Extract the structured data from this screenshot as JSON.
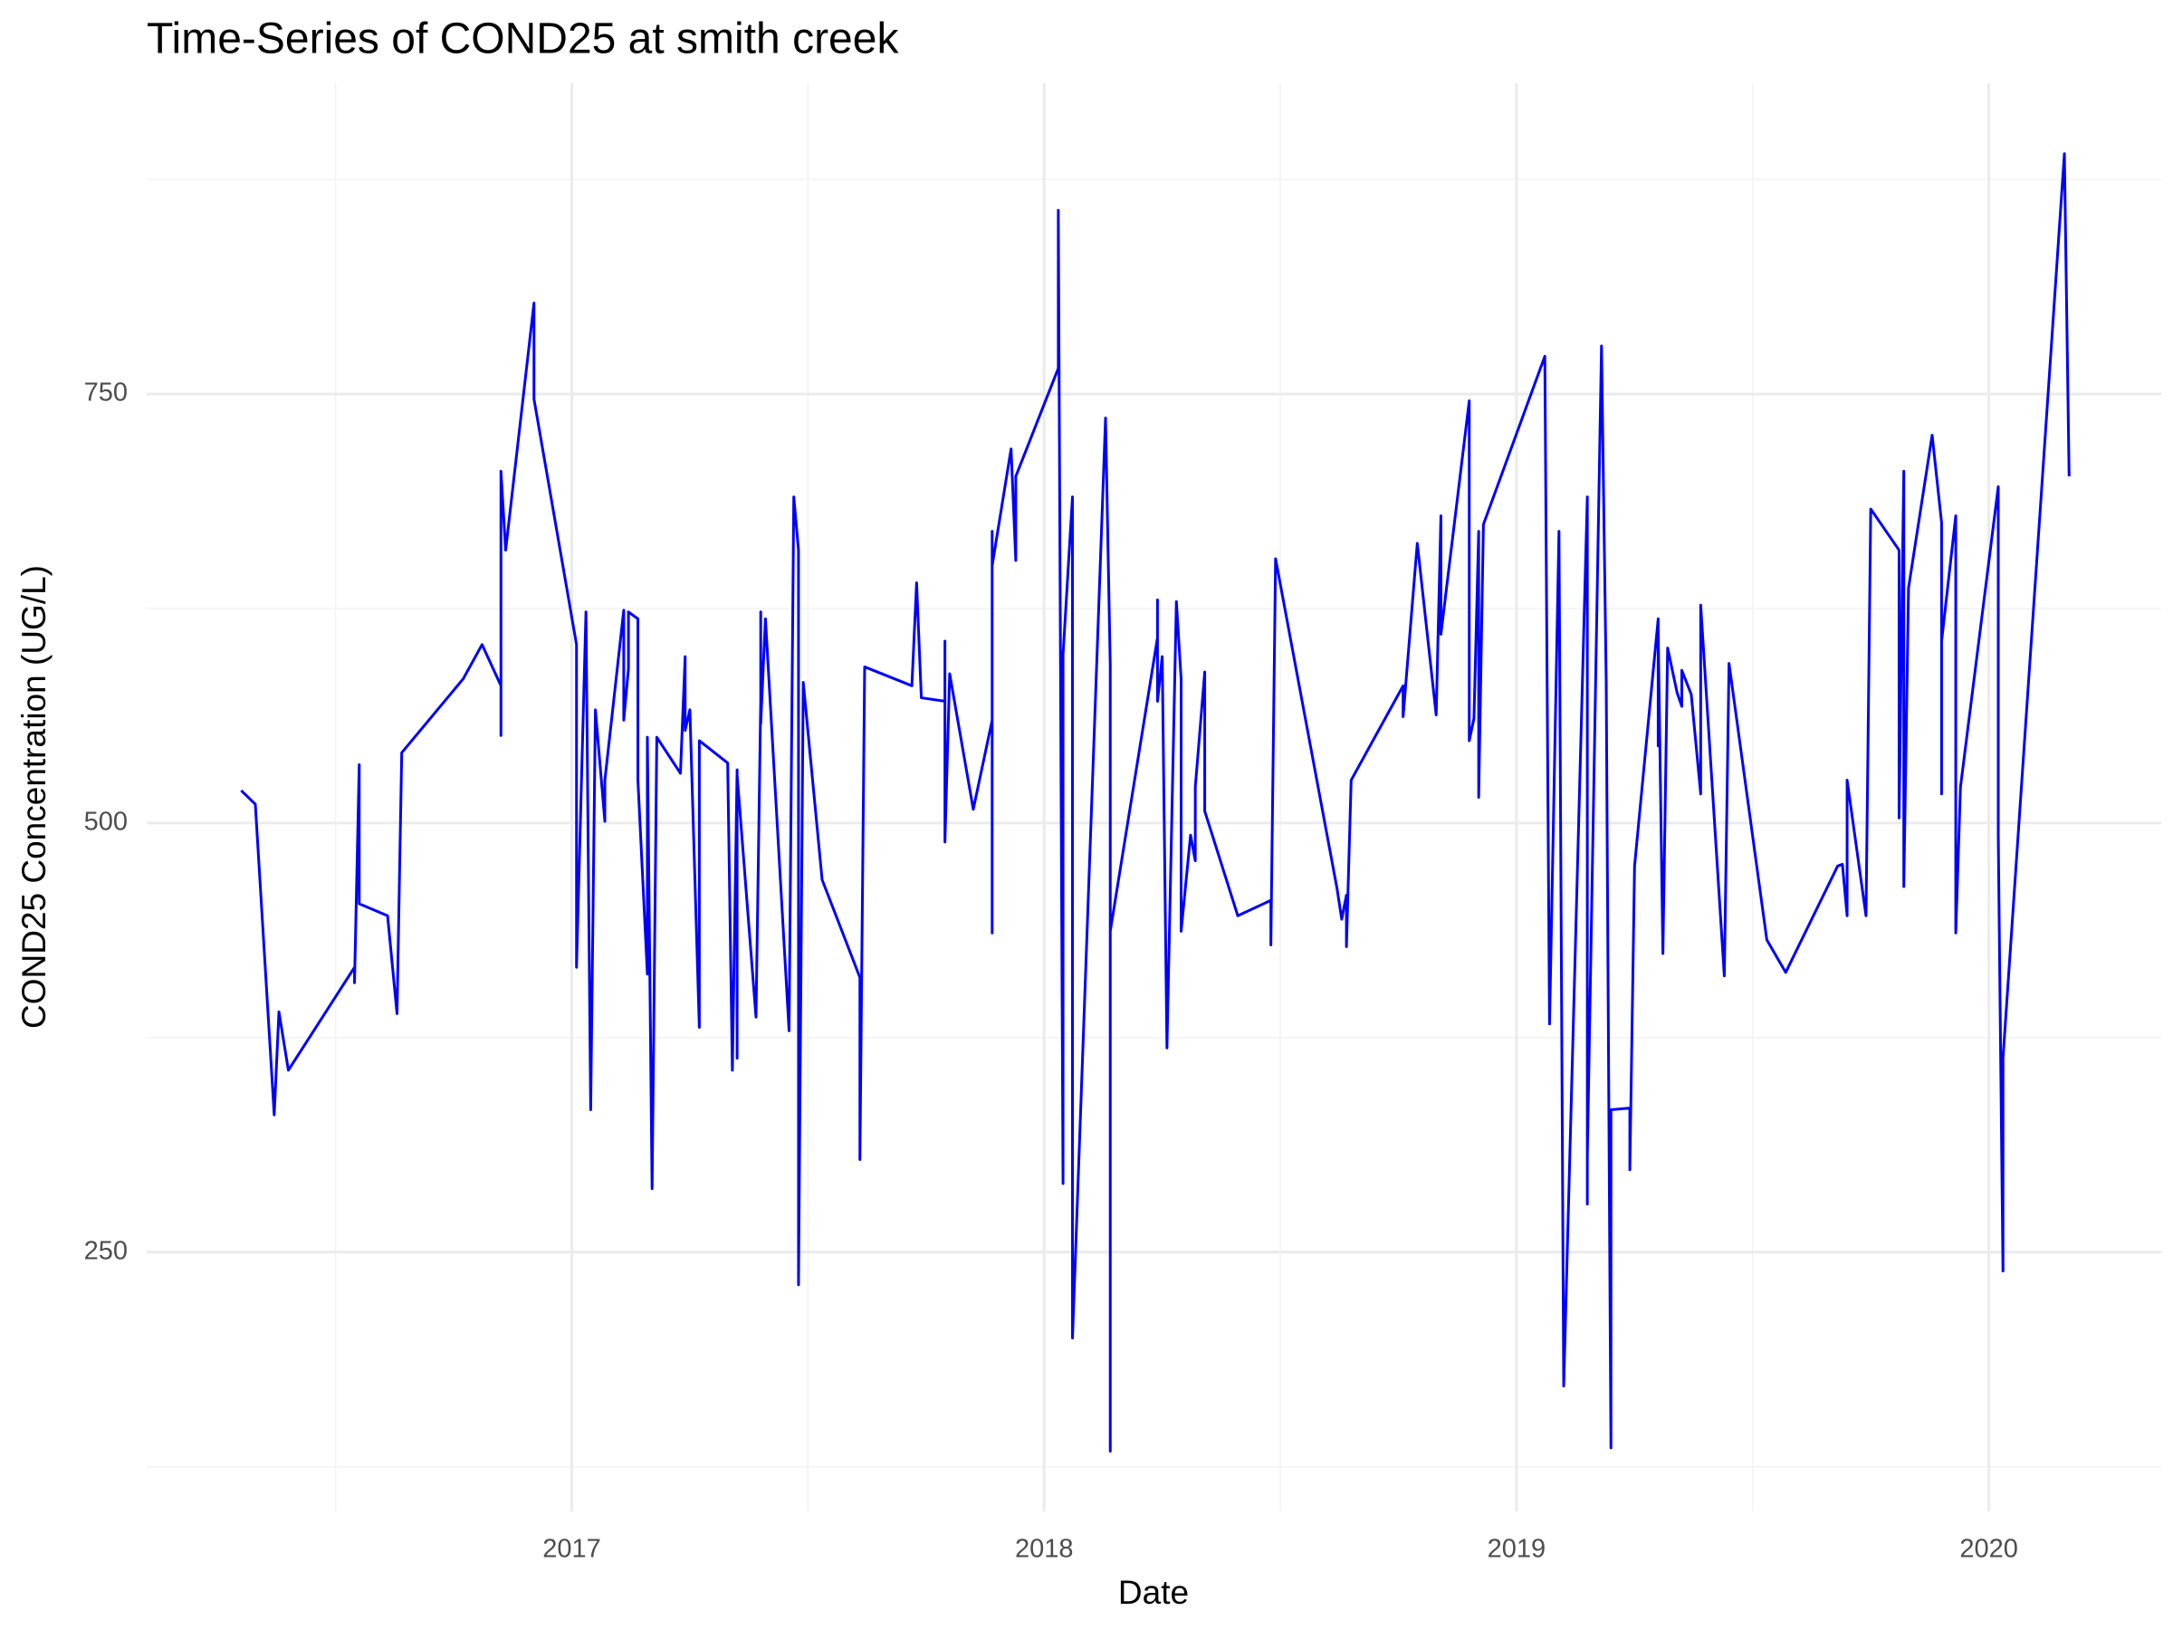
{
  "chart_data": {
    "type": "line",
    "title": "Time-Series of COND25 at smith creek",
    "x_label": "Date",
    "y_label": "COND25 Concentration (UG/L)",
    "color": "#0000ff",
    "grid": true,
    "xlim": [
      2016.1,
      2020.365
    ],
    "xticks": [
      2017,
      2018,
      2019,
      2020
    ],
    "x_minor_ticks": [
      2016.5,
      2017.5,
      2018.5,
      2019.5
    ],
    "ylim": [
      99,
      931
    ],
    "yticks": [
      250,
      500,
      750
    ],
    "y_minor_ticks": [
      125,
      375,
      625,
      875
    ],
    "x": [
      2016.3,
      2016.33,
      2016.37,
      2016.38,
      2016.4,
      2016.54,
      2016.54,
      2016.55,
      2016.55,
      2016.61,
      2016.63,
      2016.64,
      2016.77,
      2016.81,
      2016.85,
      2016.85,
      2016.85,
      2016.86,
      2016.92,
      2016.92,
      2017.01,
      2017.01,
      2017.03,
      2017.04,
      2017.05,
      2017.07,
      2017.07,
      2017.11,
      2017.11,
      2017.12,
      2017.12,
      2017.14,
      2017.14,
      2017.16,
      2017.16,
      2017.17,
      2017.18,
      2017.23,
      2017.24,
      2017.24,
      2017.25,
      2017.27,
      2017.27,
      2017.33,
      2017.34,
      2017.35,
      2017.35,
      2017.35,
      2017.39,
      2017.4,
      2017.4,
      2017.4,
      2017.41,
      2017.46,
      2017.47,
      2017.48,
      2017.48,
      2017.49,
      2017.53,
      2017.61,
      2017.61,
      2017.62,
      2017.72,
      2017.73,
      2017.74,
      2017.79,
      2017.79,
      2017.79,
      2017.8,
      2017.85,
      2017.89,
      2017.89,
      2017.89,
      2017.89,
      2017.93,
      2017.94,
      2017.94,
      2018.03,
      2018.03,
      2018.04,
      2018.04,
      2018.06,
      2018.06,
      2018.13,
      2018.14,
      2018.14,
      2018.14,
      2018.24,
      2018.24,
      2018.24,
      2018.25,
      2018.26,
      2018.28,
      2018.29,
      2018.29,
      2018.31,
      2018.32,
      2018.32,
      2018.34,
      2018.34,
      2018.41,
      2018.48,
      2018.48,
      2018.49,
      2018.62,
      2018.63,
      2018.64,
      2018.64,
      2018.65,
      2018.76,
      2018.76,
      2018.79,
      2018.83,
      2018.84,
      2018.84,
      2018.9,
      2018.9,
      2018.91,
      2018.92,
      2018.92,
      2018.93,
      2019.06,
      2019.07,
      2019.09,
      2019.1,
      2019.15,
      2019.15,
      2019.15,
      2019.18,
      2019.19,
      2019.2,
      2019.2,
      2019.24,
      2019.24,
      2019.25,
      2019.3,
      2019.3,
      2019.3,
      2019.31,
      2019.32,
      2019.34,
      2019.35,
      2019.35,
      2019.37,
      2019.39,
      2019.39,
      2019.44,
      2019.45,
      2019.53,
      2019.57,
      2019.68,
      2019.69,
      2019.7,
      2019.7,
      2019.74,
      2019.75,
      2019.81,
      2019.81,
      2019.82,
      2019.82,
      2019.83,
      2019.88,
      2019.9,
      2019.9,
      2019.9,
      2019.93,
      2019.93,
      2019.94,
      2020.02,
      2020.02,
      2020.03,
      2020.03,
      2020.16,
      2020.17
    ],
    "values": [
      519,
      511,
      330,
      390,
      356,
      416,
      407,
      534,
      453,
      446,
      389,
      541,
      584,
      604,
      580,
      551,
      705,
      659,
      803,
      747,
      604,
      416,
      623,
      333,
      566,
      501,
      525,
      624,
      560,
      590,
      623,
      619,
      525,
      412,
      550,
      287,
      550,
      529,
      597,
      554,
      566,
      381,
      548,
      535,
      356,
      531,
      363,
      528,
      387,
      571,
      623,
      558,
      619,
      379,
      690,
      659,
      231,
      582,
      467,
      410,
      304,
      591,
      580,
      640,
      573,
      571,
      606,
      489,
      587,
      508,
      560,
      670,
      436,
      650,
      718,
      653,
      702,
      765,
      857,
      290,
      598,
      690,
      200,
      736,
      592,
      134,
      437,
      608,
      630,
      571,
      597,
      369,
      629,
      584,
      437,
      493,
      478,
      521,
      588,
      507,
      446,
      455,
      429,
      654,
      462,
      444,
      458,
      428,
      525,
      580,
      562,
      663,
      563,
      679,
      610,
      746,
      548,
      561,
      670,
      515,
      674,
      772,
      383,
      670,
      172,
      690,
      278,
      306,
      778,
      582,
      136,
      333,
      334,
      298,
      475,
      619,
      545,
      612,
      424,
      602,
      576,
      568,
      589,
      575,
      517,
      627,
      411,
      593,
      432,
      413,
      475,
      476,
      446,
      525,
      446,
      683,
      659,
      503,
      705,
      463,
      637,
      726,
      675,
      517,
      606,
      679,
      436,
      521,
      696,
      493,
      239,
      363,
      890,
      702
    ]
  }
}
